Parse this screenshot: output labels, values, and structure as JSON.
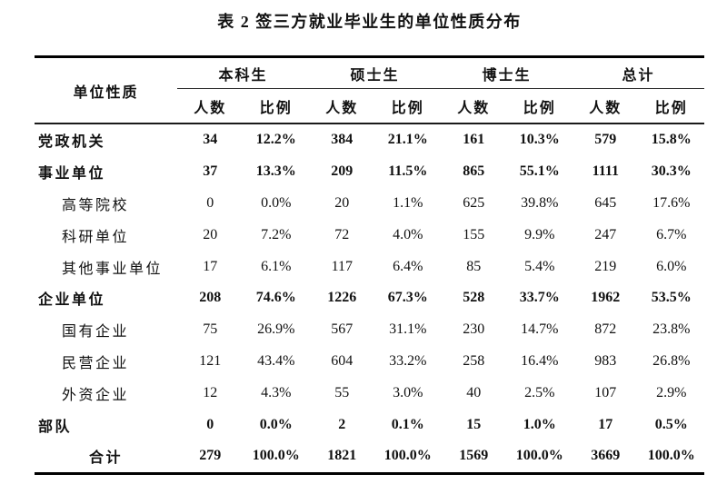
{
  "title": "表 2 签三方就业毕业生的单位性质分布",
  "colors": {
    "background": "#ffffff",
    "text": "#111111",
    "rule": "#000000"
  },
  "table": {
    "row_header": "单位性质",
    "groups": [
      "本科生",
      "硕士生",
      "博士生",
      "总计"
    ],
    "subheaders": [
      "人数",
      "比例"
    ],
    "rows": [
      {
        "label": "党政机关",
        "bold": true,
        "indent": false,
        "total": false,
        "values": [
          "34",
          "12.2%",
          "384",
          "21.1%",
          "161",
          "10.3%",
          "579",
          "15.8%"
        ]
      },
      {
        "label": "事业单位",
        "bold": true,
        "indent": false,
        "total": false,
        "values": [
          "37",
          "13.3%",
          "209",
          "11.5%",
          "865",
          "55.1%",
          "1111",
          "30.3%"
        ]
      },
      {
        "label": "高等院校",
        "bold": false,
        "indent": true,
        "total": false,
        "values": [
          "0",
          "0.0%",
          "20",
          "1.1%",
          "625",
          "39.8%",
          "645",
          "17.6%"
        ]
      },
      {
        "label": "科研单位",
        "bold": false,
        "indent": true,
        "total": false,
        "values": [
          "20",
          "7.2%",
          "72",
          "4.0%",
          "155",
          "9.9%",
          "247",
          "6.7%"
        ]
      },
      {
        "label": "其他事业单位",
        "bold": false,
        "indent": true,
        "total": false,
        "values": [
          "17",
          "6.1%",
          "117",
          "6.4%",
          "85",
          "5.4%",
          "219",
          "6.0%"
        ]
      },
      {
        "label": "企业单位",
        "bold": true,
        "indent": false,
        "total": false,
        "values": [
          "208",
          "74.6%",
          "1226",
          "67.3%",
          "528",
          "33.7%",
          "1962",
          "53.5%"
        ]
      },
      {
        "label": "国有企业",
        "bold": false,
        "indent": true,
        "total": false,
        "values": [
          "75",
          "26.9%",
          "567",
          "31.1%",
          "230",
          "14.7%",
          "872",
          "23.8%"
        ]
      },
      {
        "label": "民营企业",
        "bold": false,
        "indent": true,
        "total": false,
        "values": [
          "121",
          "43.4%",
          "604",
          "33.2%",
          "258",
          "16.4%",
          "983",
          "26.8%"
        ]
      },
      {
        "label": "外资企业",
        "bold": false,
        "indent": true,
        "total": false,
        "values": [
          "12",
          "4.3%",
          "55",
          "3.0%",
          "40",
          "2.5%",
          "107",
          "2.9%"
        ]
      },
      {
        "label": "部队",
        "bold": true,
        "indent": false,
        "total": false,
        "values": [
          "0",
          "0.0%",
          "2",
          "0.1%",
          "15",
          "1.0%",
          "17",
          "0.5%"
        ]
      },
      {
        "label": "合计",
        "bold": true,
        "indent": false,
        "total": true,
        "values": [
          "279",
          "100.0%",
          "1821",
          "100.0%",
          "1569",
          "100.0%",
          "3669",
          "100.0%"
        ]
      }
    ]
  }
}
